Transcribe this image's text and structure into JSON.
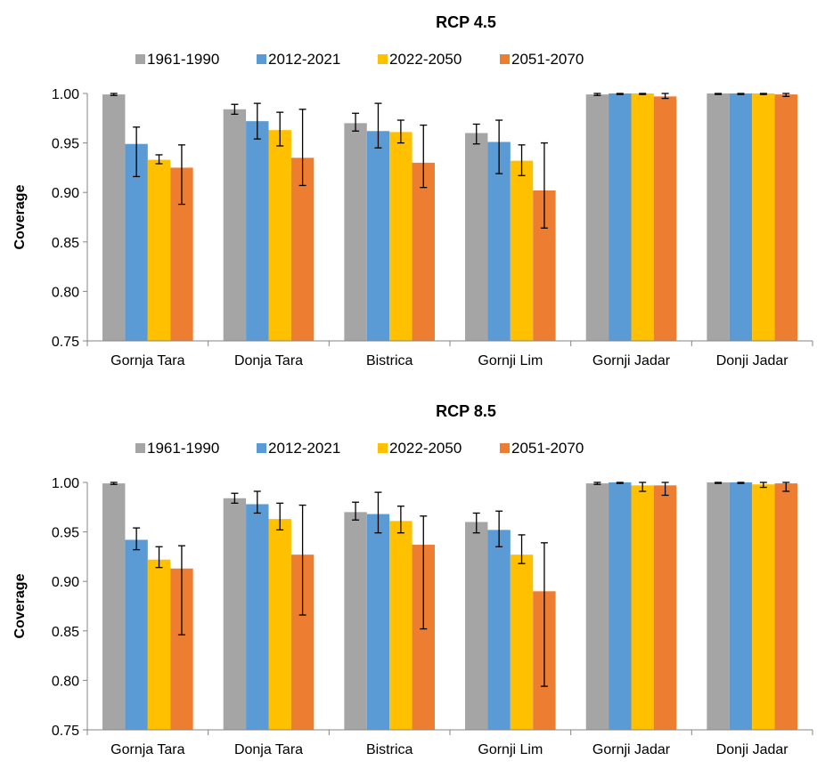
{
  "chart_data": [
    {
      "type": "bar",
      "title": "RCP 4.5",
      "ylabel": "Coverage",
      "xlabel": "",
      "ylim": [
        0.75,
        1.0
      ],
      "yticks": [
        "0.75",
        "0.80",
        "0.85",
        "0.90",
        "0.95",
        "1.00"
      ],
      "categories": [
        "Gornja Tara",
        "Donja Tara",
        "Bistrica",
        "Gornji Lim",
        "Gornji Jadar",
        "Donji Jadar"
      ],
      "legend_position": "top",
      "grid": false,
      "series": [
        {
          "name": "1961-1990",
          "color": "#A5A5A5",
          "values": [
            0.999,
            0.984,
            0.97,
            0.96,
            0.999,
            1.0
          ],
          "error_low": [
            0.998,
            0.979,
            0.962,
            0.949,
            0.998,
            0.999
          ],
          "error_high": [
            1.0,
            0.989,
            0.98,
            0.969,
            1.0,
            1.0
          ]
        },
        {
          "name": "2012-2021",
          "color": "#5B9BD5",
          "values": [
            0.949,
            0.972,
            0.962,
            0.951,
            1.0,
            1.0
          ],
          "error_low": [
            0.916,
            0.954,
            0.945,
            0.919,
            0.999,
            0.999
          ],
          "error_high": [
            0.966,
            0.99,
            0.99,
            0.973,
            1.0,
            1.0
          ]
        },
        {
          "name": "2022-2050",
          "color": "#FFC000",
          "values": [
            0.933,
            0.963,
            0.961,
            0.932,
            1.0,
            1.0
          ],
          "error_low": [
            0.929,
            0.947,
            0.95,
            0.917,
            0.999,
            0.999
          ],
          "error_high": [
            0.938,
            0.981,
            0.973,
            0.948,
            1.0,
            1.0
          ]
        },
        {
          "name": "2051-2070",
          "color": "#ED7D31",
          "values": [
            0.925,
            0.935,
            0.93,
            0.902,
            0.997,
            0.999
          ],
          "error_low": [
            0.888,
            0.907,
            0.905,
            0.864,
            0.995,
            0.997
          ],
          "error_high": [
            0.948,
            0.984,
            0.968,
            0.95,
            1.0,
            1.0
          ]
        }
      ]
    },
    {
      "type": "bar",
      "title": "RCP 8.5",
      "ylabel": "Coverage",
      "xlabel": "",
      "ylim": [
        0.75,
        1.0
      ],
      "yticks": [
        "0.75",
        "0.80",
        "0.85",
        "0.90",
        "0.95",
        "1.00"
      ],
      "categories": [
        "Gornja Tara",
        "Donja Tara",
        "Bistrica",
        "Gornji Lim",
        "Gornji Jadar",
        "Donji Jadar"
      ],
      "legend_position": "top",
      "grid": false,
      "series": [
        {
          "name": "1961-1990",
          "color": "#A5A5A5",
          "values": [
            0.999,
            0.984,
            0.97,
            0.96,
            0.999,
            1.0
          ],
          "error_low": [
            0.998,
            0.979,
            0.962,
            0.949,
            0.998,
            0.999
          ],
          "error_high": [
            1.0,
            0.989,
            0.98,
            0.969,
            1.0,
            1.0
          ]
        },
        {
          "name": "2012-2021",
          "color": "#5B9BD5",
          "values": [
            0.942,
            0.978,
            0.968,
            0.952,
            1.0,
            1.0
          ],
          "error_low": [
            0.932,
            0.969,
            0.949,
            0.935,
            0.999,
            0.999
          ],
          "error_high": [
            0.954,
            0.991,
            0.99,
            0.971,
            1.0,
            1.0
          ]
        },
        {
          "name": "2022-2050",
          "color": "#FFC000",
          "values": [
            0.922,
            0.963,
            0.961,
            0.927,
            0.997,
            0.998
          ],
          "error_low": [
            0.914,
            0.952,
            0.949,
            0.918,
            0.991,
            0.995
          ],
          "error_high": [
            0.935,
            0.979,
            0.976,
            0.947,
            1.0,
            1.0
          ]
        },
        {
          "name": "2051-2070",
          "color": "#ED7D31",
          "values": [
            0.913,
            0.927,
            0.937,
            0.89,
            0.997,
            0.999
          ],
          "error_low": [
            0.846,
            0.866,
            0.852,
            0.794,
            0.987,
            0.991
          ],
          "error_high": [
            0.936,
            0.977,
            0.966,
            0.939,
            1.0,
            1.0
          ]
        }
      ]
    }
  ]
}
